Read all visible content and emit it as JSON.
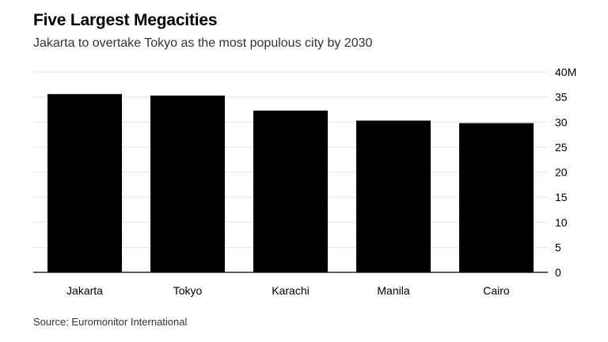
{
  "chart_data": {
    "type": "bar",
    "title": "Five Largest Megacities",
    "subtitle": "Jakarta to overtake Tokyo as the most populous city by 2030",
    "source": "Source: Euromonitor International",
    "categories": [
      "Jakarta",
      "Tokyo",
      "Karachi",
      "Manila",
      "Cairo"
    ],
    "values": [
      35.6,
      35.3,
      32.3,
      30.3,
      29.8
    ],
    "ylim": [
      0,
      40
    ],
    "yticks": [
      0,
      5,
      10,
      15,
      20,
      25,
      30,
      35,
      40
    ],
    "ytick_labels": [
      "0",
      "5",
      "10",
      "15",
      "20",
      "25",
      "30",
      "35",
      "40M"
    ],
    "yaxis_position": "right",
    "grid": true,
    "colors": {
      "bar": "#000000",
      "grid": "#e3e3e3",
      "axis": "#000000",
      "text": "#000000"
    }
  }
}
